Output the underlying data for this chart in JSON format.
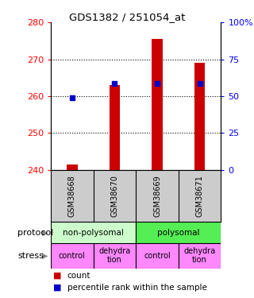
{
  "title": "GDS1382 / 251054_at",
  "samples": [
    "GSM38668",
    "GSM38670",
    "GSM38669",
    "GSM38671"
  ],
  "count_values": [
    241.5,
    263.0,
    275.5,
    269.0
  ],
  "percentile_values": [
    259.5,
    263.5,
    263.5,
    263.5
  ],
  "ylim": [
    240,
    280
  ],
  "yticks_left": [
    240,
    250,
    260,
    270,
    280
  ],
  "yticks_right": [
    0,
    25,
    50,
    75,
    100
  ],
  "bar_bottom": 240,
  "bar_color": "#cc0000",
  "dot_color": "#0000cc",
  "protocol_labels": [
    "non-polysomal",
    "polysomal"
  ],
  "protocol_color_nonpoly": "#ccffcc",
  "protocol_color_poly": "#55ee55",
  "stress_labels": [
    "control",
    "dehydra\ntion",
    "control",
    "dehydra\ntion"
  ],
  "stress_color": "#ff88ff",
  "row_label_protocol": "protocol",
  "row_label_stress": "stress",
  "legend_count_color": "#cc0000",
  "legend_pct_color": "#0000cc",
  "legend_count_label": "count",
  "legend_pct_label": "percentile rank within the sample",
  "background_color": "#ffffff",
  "gray_color": "#cccccc"
}
